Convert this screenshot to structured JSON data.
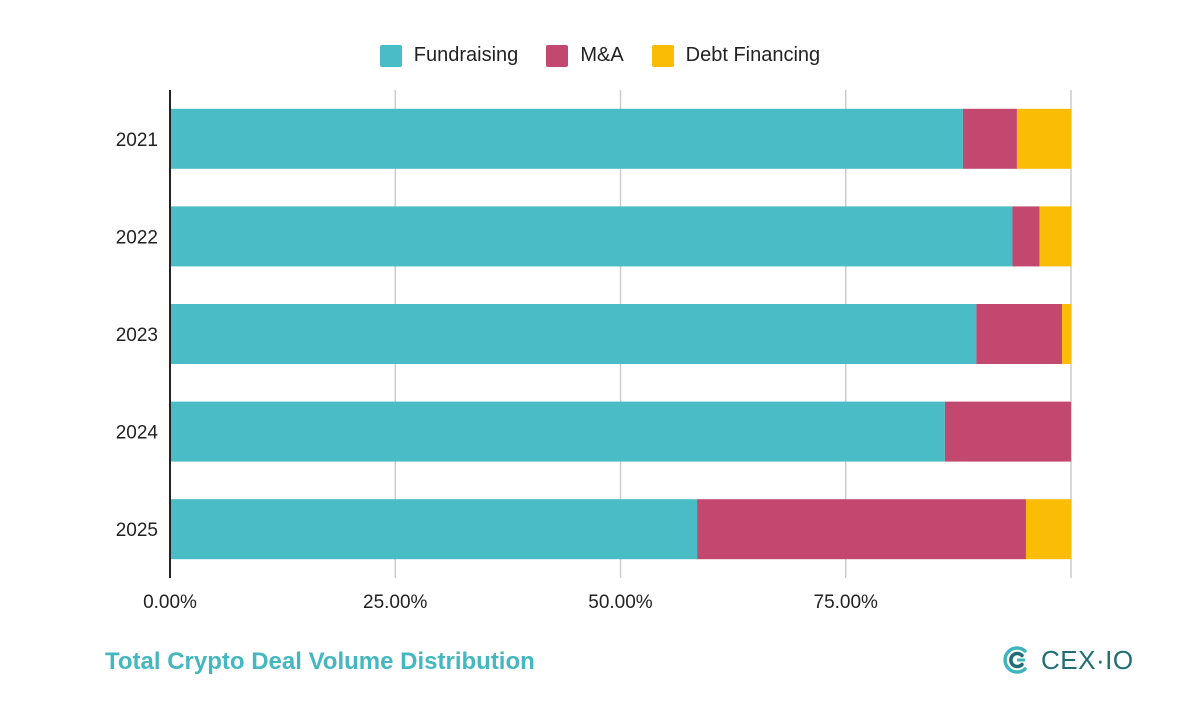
{
  "chart_data": {
    "type": "bar",
    "orientation": "horizontal",
    "stacked": true,
    "categories": [
      "2021",
      "2022",
      "2023",
      "2024",
      "2025"
    ],
    "series": [
      {
        "name": "Fundraising",
        "color": "#49bcc5",
        "values": [
          88.0,
          93.5,
          89.5,
          86.0,
          58.5
        ]
      },
      {
        "name": "M&A",
        "color": "#c3486f",
        "values": [
          6.0,
          3.0,
          9.5,
          14.0,
          36.5
        ]
      },
      {
        "name": "Debt Financing",
        "color": "#fbbc05",
        "values": [
          6.0,
          3.5,
          1.0,
          0.0,
          5.0
        ]
      }
    ],
    "xlim": [
      0,
      100
    ],
    "x_ticks": [
      "0.00%",
      "25.00%",
      "50.00%",
      "75.00%"
    ],
    "grid": true,
    "legend_position": "top"
  },
  "footer": {
    "title": "Total Crypto Deal Volume Distribution"
  },
  "brand": {
    "name": "CEX·IO",
    "icon": "cex-io-logo-icon",
    "color": "#1f6e75"
  }
}
